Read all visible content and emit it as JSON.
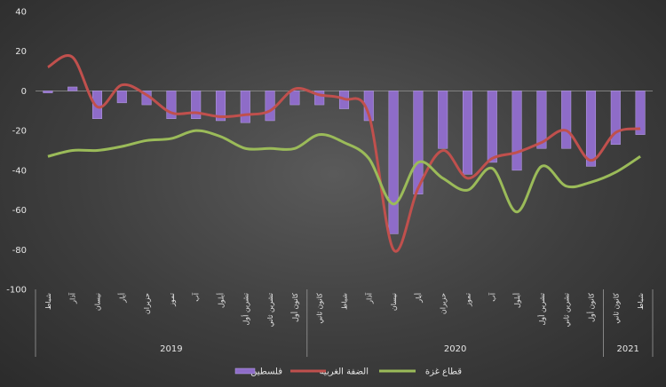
{
  "chart_data": {
    "type": "bar-line",
    "ylim": [
      -100,
      40
    ],
    "yticks": [
      40,
      20,
      0,
      -20,
      -40,
      -60,
      -80,
      -100
    ],
    "categories": [
      "شباط",
      "آذار",
      "نيسان",
      "أيار",
      "حزيران",
      "تموز",
      "آب",
      "أيلول",
      "تشرين أول",
      "تشرين ثاني",
      "كانون أول",
      "كانون ثاني",
      "شباط",
      "آذار",
      "نيسان",
      "أيار",
      "حزيران",
      "تموز",
      "آب",
      "أيلول",
      "تشرين أول",
      "تشرين ثاني",
      "كانون أول",
      "كانون ثاني",
      "شباط"
    ],
    "years": [
      {
        "label": "2019",
        "start": 0,
        "end": 10
      },
      {
        "label": "2020",
        "start": 11,
        "end": 22
      },
      {
        "label": "2021",
        "start": 23,
        "end": 24
      }
    ],
    "series": [
      {
        "name": "فلسطين",
        "kind": "bar",
        "color": "#8e6cc8",
        "values": [
          -1,
          2,
          -14,
          -6,
          -7,
          -14,
          -14,
          -15,
          -16,
          -15,
          -7,
          -7,
          -9,
          -15,
          -72,
          -52,
          -29,
          -42,
          -36,
          -40,
          -29,
          -29,
          -38,
          -27,
          -22
        ]
      },
      {
        "name": "الضفة الغربية",
        "kind": "line",
        "color": "#c0504d",
        "values": [
          12,
          17,
          -8,
          3,
          -2,
          -11,
          -11,
          -13,
          -12,
          -10,
          1,
          -2,
          -4,
          -12,
          -80,
          -49,
          -30,
          -44,
          -34,
          -31,
          -26,
          -20,
          -35,
          -21,
          -19
        ]
      },
      {
        "name": "قطاع غزة",
        "kind": "line",
        "color": "#9bbb59",
        "values": [
          -33,
          -30,
          -30,
          -28,
          -25,
          -24,
          -20,
          -23,
          -29,
          -29,
          -29,
          -22,
          -26,
          -34,
          -57,
          -36,
          -44,
          -50,
          -39,
          -61,
          -38,
          -48,
          -46,
          -41,
          -33
        ]
      }
    ]
  }
}
